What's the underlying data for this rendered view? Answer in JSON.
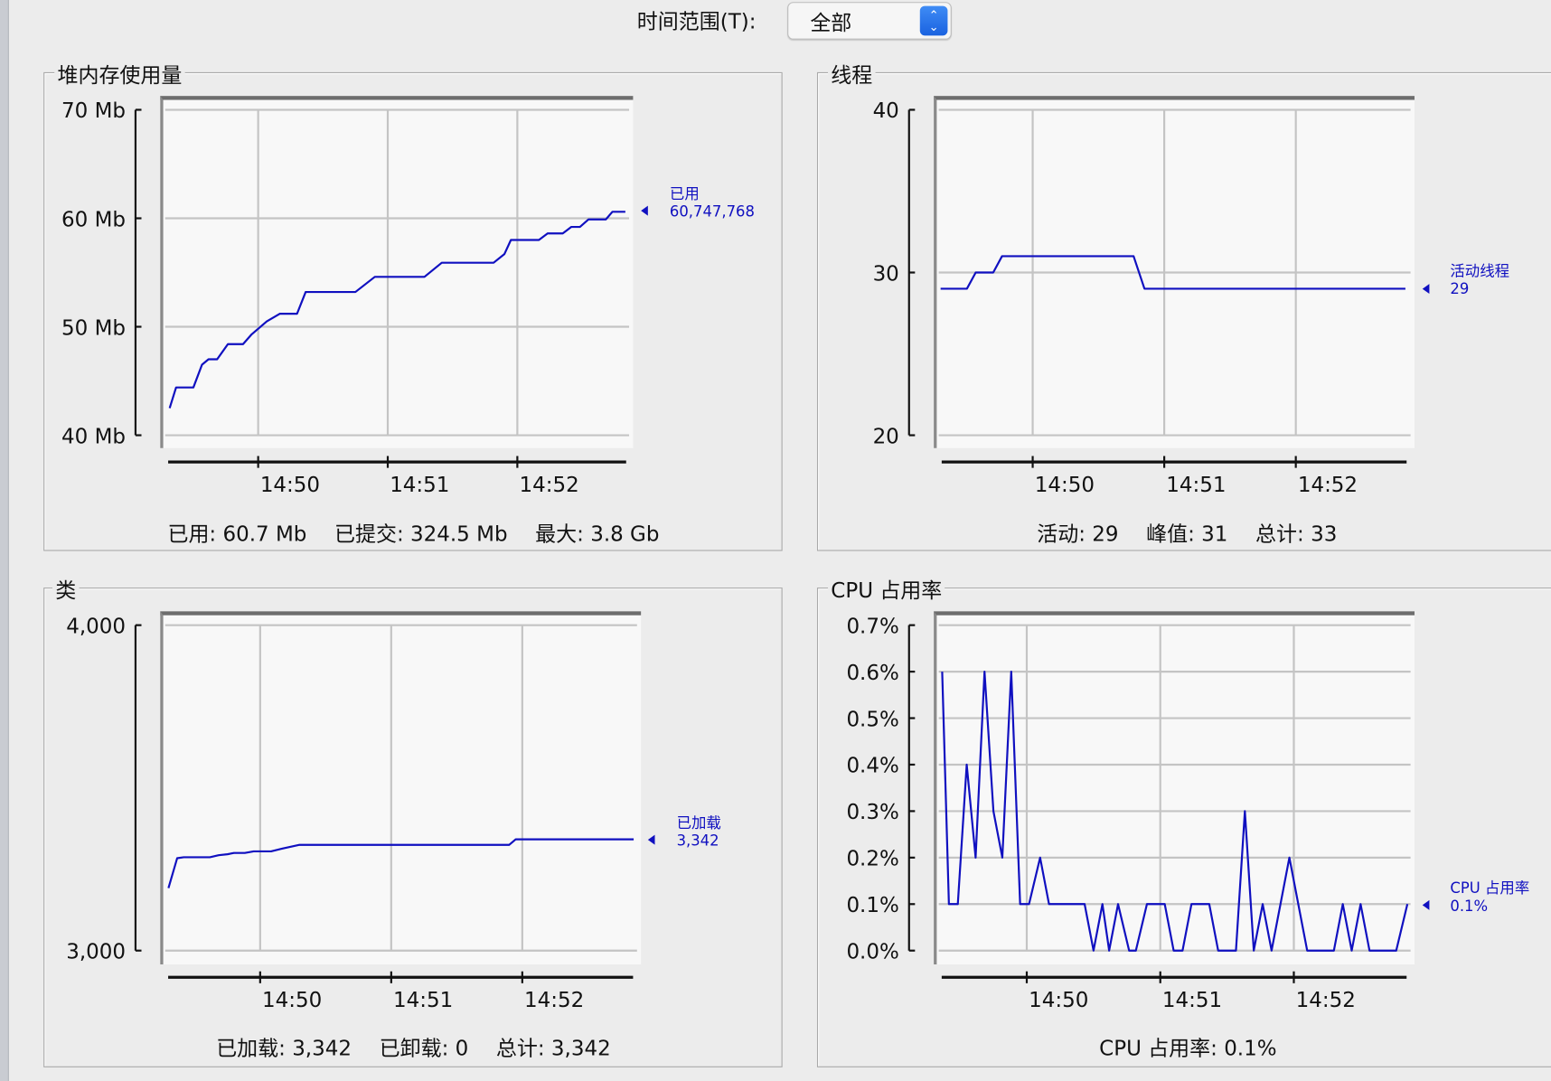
{
  "toolbar": {
    "time_range_label": "时间范围(T):",
    "time_range_value": "全部",
    "stepper_icon": "up-down-chevron-icon"
  },
  "panels": {
    "heap": {
      "title": "堆内存使用量",
      "summary": [
        "已用: 60.7 Mb",
        "已提交: 324.5 Mb",
        "最大: 3.8 Gb"
      ],
      "legend_name": "已用",
      "legend_value": "60,747,768"
    },
    "threads": {
      "title": "线程",
      "summary": [
        "活动: 29",
        "峰值: 31",
        "总计: 33"
      ],
      "legend_name": "活动线程",
      "legend_value": "29"
    },
    "classes": {
      "title": "类",
      "summary": [
        "已加载: 3,342",
        "已卸载: 0",
        "总计: 3,342"
      ],
      "legend_name": "已加载",
      "legend_value": "3,342"
    },
    "cpu": {
      "title": "CPU 占用率",
      "summary": [
        "CPU 占用率: 0.1%"
      ],
      "legend_name": "CPU 占用率",
      "legend_value": "0.1%"
    }
  },
  "colors": {
    "series": "#1010c0",
    "grid": "#c4c4c4",
    "plot_bg": "#f8f8f8"
  },
  "chart_data": [
    {
      "id": "heap",
      "type": "line",
      "title": "堆内存使用量",
      "grid": true,
      "legend": "right",
      "x_ticks": [
        "14:50",
        "14:51",
        "14:52"
      ],
      "y_unit": "Mb",
      "ylim": [
        40,
        70
      ],
      "y_ticks": [
        {
          "value": 40,
          "label": "40 Mb"
        },
        {
          "value": 50,
          "label": "50 Mb"
        },
        {
          "value": 60,
          "label": "60 Mb"
        },
        {
          "value": 70,
          "label": "70 Mb"
        }
      ],
      "series": [
        {
          "name": "已用",
          "points": [
            [
              "14:49:19",
              42.5
            ],
            [
              "14:49:22",
              44.4
            ],
            [
              "14:49:30",
              44.4
            ],
            [
              "14:49:34",
              46.5
            ],
            [
              "14:49:37",
              47.0
            ],
            [
              "14:49:41",
              47.0
            ],
            [
              "14:49:46",
              48.4
            ],
            [
              "14:49:53",
              48.4
            ],
            [
              "14:49:57",
              49.3
            ],
            [
              "14:50:04",
              50.5
            ],
            [
              "14:50:10",
              51.2
            ],
            [
              "14:50:18",
              51.2
            ],
            [
              "14:50:22",
              53.2
            ],
            [
              "14:50:45",
              53.2
            ],
            [
              "14:50:54",
              54.6
            ],
            [
              "14:51:17",
              54.6
            ],
            [
              "14:51:25",
              55.9
            ],
            [
              "14:51:49",
              55.9
            ],
            [
              "14:51:54",
              56.7
            ],
            [
              "14:51:57",
              58.0
            ],
            [
              "14:52:10",
              58.0
            ],
            [
              "14:52:14",
              58.6
            ],
            [
              "14:52:21",
              58.6
            ],
            [
              "14:52:25",
              59.2
            ],
            [
              "14:52:29",
              59.2
            ],
            [
              "14:52:33",
              59.9
            ],
            [
              "14:52:41",
              59.9
            ],
            [
              "14:52:44",
              60.6
            ],
            [
              "14:52:50",
              60.6
            ]
          ]
        }
      ]
    },
    {
      "id": "threads",
      "type": "line",
      "title": "线程",
      "grid": true,
      "legend": "right",
      "x_ticks": [
        "14:50",
        "14:51",
        "14:52"
      ],
      "ylim": [
        20,
        40
      ],
      "y_ticks": [
        {
          "value": 20,
          "label": "20"
        },
        {
          "value": 30,
          "label": "30"
        },
        {
          "value": 40,
          "label": "40"
        }
      ],
      "series": [
        {
          "name": "活动线程",
          "points": [
            [
              "14:49:18",
              29
            ],
            [
              "14:49:30",
              29
            ],
            [
              "14:49:34",
              30
            ],
            [
              "14:49:42",
              30
            ],
            [
              "14:49:46",
              31
            ],
            [
              "14:50:46",
              31
            ],
            [
              "14:50:51",
              29
            ],
            [
              "14:52:50",
              29
            ]
          ]
        }
      ]
    },
    {
      "id": "classes",
      "type": "line",
      "title": "类",
      "grid": true,
      "legend": "right",
      "x_ticks": [
        "14:50",
        "14:51",
        "14:52"
      ],
      "ylim": [
        3000,
        4000
      ],
      "y_ticks": [
        {
          "value": 3000,
          "label": "3,000"
        },
        {
          "value": 4000,
          "label": "4,000"
        }
      ],
      "series": [
        {
          "name": "已加载",
          "points": [
            [
              "14:49:18",
              3192
            ],
            [
              "14:49:22",
              3284
            ],
            [
              "14:49:25",
              3287
            ],
            [
              "14:49:37",
              3287
            ],
            [
              "14:49:41",
              3293
            ],
            [
              "14:49:45",
              3296
            ],
            [
              "14:49:48",
              3300
            ],
            [
              "14:49:53",
              3300
            ],
            [
              "14:49:57",
              3305
            ],
            [
              "14:50:05",
              3305
            ],
            [
              "14:50:10",
              3313
            ],
            [
              "14:50:18",
              3325
            ],
            [
              "14:51:54",
              3325
            ],
            [
              "14:51:57",
              3342
            ],
            [
              "14:52:51",
              3342
            ]
          ]
        }
      ]
    },
    {
      "id": "cpu",
      "type": "line",
      "title": "CPU 占用率",
      "grid": true,
      "legend": "right",
      "x_ticks": [
        "14:50",
        "14:51",
        "14:52"
      ],
      "y_unit": "%",
      "ylim": [
        0,
        0.7
      ],
      "y_ticks": [
        {
          "value": 0,
          "label": "0.0%"
        },
        {
          "value": 0.1,
          "label": "0.1%"
        },
        {
          "value": 0.2,
          "label": "0.2%"
        },
        {
          "value": 0.3,
          "label": "0.3%"
        },
        {
          "value": 0.4,
          "label": "0.4%"
        },
        {
          "value": 0.5,
          "label": "0.5%"
        },
        {
          "value": 0.6,
          "label": "0.6%"
        },
        {
          "value": 0.7,
          "label": "0.7%"
        }
      ],
      "series": [
        {
          "name": "CPU 占用率",
          "points": [
            [
              "14:49:22",
              0.6
            ],
            [
              "14:49:25",
              0.1
            ],
            [
              "14:49:29",
              0.1
            ],
            [
              "14:49:33",
              0.4
            ],
            [
              "14:49:37",
              0.2
            ],
            [
              "14:49:41",
              0.6
            ],
            [
              "14:49:45",
              0.3
            ],
            [
              "14:49:49",
              0.2
            ],
            [
              "14:49:53",
              0.6
            ],
            [
              "14:49:57",
              0.1
            ],
            [
              "14:50:01",
              0.1
            ],
            [
              "14:50:06",
              0.2
            ],
            [
              "14:50:10",
              0.1
            ],
            [
              "14:50:26",
              0.1
            ],
            [
              "14:50:30",
              0
            ],
            [
              "14:50:34",
              0.1
            ],
            [
              "14:50:37",
              0
            ],
            [
              "14:50:41",
              0.1
            ],
            [
              "14:50:46",
              0
            ],
            [
              "14:50:49",
              0
            ],
            [
              "14:50:54",
              0.1
            ],
            [
              "14:51:02",
              0.1
            ],
            [
              "14:51:06",
              0
            ],
            [
              "14:51:10",
              0
            ],
            [
              "14:51:14",
              0.1
            ],
            [
              "14:51:22",
              0.1
            ],
            [
              "14:51:26",
              0
            ],
            [
              "14:51:34",
              0
            ],
            [
              "14:51:38",
              0.3
            ],
            [
              "14:51:42",
              0
            ],
            [
              "14:51:46",
              0.1
            ],
            [
              "14:51:50",
              0
            ],
            [
              "14:51:58",
              0.2
            ],
            [
              "14:52:06",
              0
            ],
            [
              "14:52:18",
              0
            ],
            [
              "14:52:22",
              0.1
            ],
            [
              "14:52:26",
              0
            ],
            [
              "14:52:30",
              0.1
            ],
            [
              "14:52:34",
              0
            ],
            [
              "14:52:46",
              0
            ],
            [
              "14:52:51",
              0.1
            ]
          ]
        }
      ]
    }
  ]
}
